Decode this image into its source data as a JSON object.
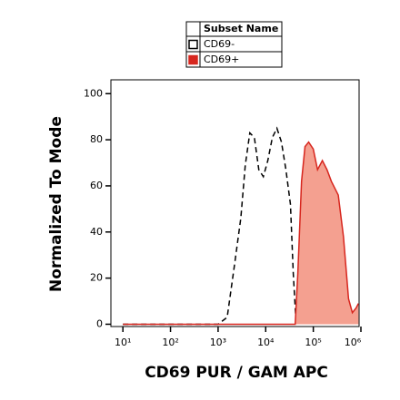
{
  "chart_data": {
    "type": "histogram-overlay",
    "x_label": "CD69 PUR / GAM APC",
    "y_label": "Normalized To Mode",
    "log_x": true,
    "xlim": [
      5.6,
      1000000
    ],
    "ylim": [
      -1,
      106
    ],
    "xticks": [
      {
        "value": 10,
        "label": "10¹"
      },
      {
        "value": 100,
        "label": "10²"
      },
      {
        "value": 1000,
        "label": "10³"
      },
      {
        "value": 10000,
        "label": "10⁴"
      },
      {
        "value": 100000,
        "label": "10⁵"
      },
      {
        "value": 1000000,
        "label": "10⁶"
      }
    ],
    "yticks": [
      0,
      20,
      40,
      60,
      80,
      100
    ],
    "legend_title": "Subset Name",
    "series": [
      {
        "name": "CD69-",
        "color": "#000000",
        "style": "dashed",
        "x": [
          10,
          1000,
          1550,
          2190,
          3000,
          3730,
          4640,
          5770,
          7180,
          8930,
          11100,
          13800,
          17200,
          21400,
          26600,
          33100,
          38000,
          43600
        ],
        "values": [
          0,
          0,
          3,
          25,
          46,
          69,
          83,
          81,
          67,
          64,
          71,
          81,
          85,
          79,
          67,
          52,
          22,
          0
        ]
      },
      {
        "name": "CD69+",
        "color": "#d7261e",
        "fill": "#f4a090",
        "style": "filled",
        "x": [
          10,
          41700,
          47300,
          56500,
          67000,
          79800,
          100000,
          123000,
          155000,
          194000,
          240000,
          334000,
          430000,
          550000,
          660000,
          790000,
          890000
        ],
        "values": [
          0,
          0,
          22,
          62,
          77,
          79,
          76,
          67,
          71,
          67,
          62,
          56,
          38,
          11,
          5,
          7,
          9
        ]
      }
    ]
  }
}
